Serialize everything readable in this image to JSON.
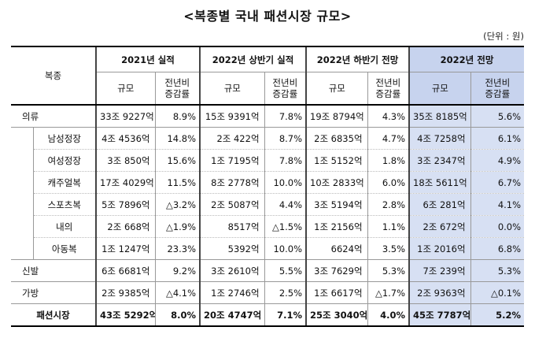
{
  "title": "<복종별 국내 패션시장 규모>",
  "unit": "(단위 : 원)",
  "table": {
    "corner": "복종",
    "groups": [
      "2021년 실적",
      "2022년 상반기 실적",
      "2022년 하반기 전망",
      "2022년 전망"
    ],
    "sub_size": "규모",
    "sub_rate": "전년비 증감률",
    "rows": [
      {
        "name": "의류",
        "v": [
          "33조 9227억",
          "8.9%",
          "15조 9391억",
          "7.8%",
          "19조 8794억",
          "4.3%",
          "35조 8185억",
          "5.6%"
        ]
      },
      {
        "name": "남성정장",
        "v": [
          "4조 4536억",
          "14.8%",
          "2조 422억",
          "8.7%",
          "2조 6835억",
          "4.7%",
          "4조 7258억",
          "6.1%"
        ]
      },
      {
        "name": "여성정장",
        "v": [
          "3조 850억",
          "15.6%",
          "1조 7195억",
          "7.8%",
          "1조 5152억",
          "1.8%",
          "3조 2347억",
          "4.9%"
        ]
      },
      {
        "name": "캐주얼복",
        "v": [
          "17조 4029억",
          "11.5%",
          "8조 2778억",
          "10.0%",
          "10조 2833억",
          "6.0%",
          "18조 5611억",
          "6.7%"
        ]
      },
      {
        "name": "스포츠복",
        "v": [
          "5조 7896억",
          "△3.2%",
          "2조 5087억",
          "4.4%",
          "3조 5194억",
          "2.8%",
          "6조 281억",
          "4.1%"
        ]
      },
      {
        "name": "내의",
        "v": [
          "2조 668억",
          "△1.9%",
          "8517억",
          "△1.5%",
          "1조 2156억",
          "1.1%",
          "2조 672억",
          "0.0%"
        ]
      },
      {
        "name": "아동복",
        "v": [
          "1조 1247억",
          "23.3%",
          "5392억",
          "10.0%",
          "6624억",
          "3.5%",
          "1조 2016억",
          "6.8%"
        ]
      },
      {
        "name": "신발",
        "v": [
          "6조 6681억",
          "9.2%",
          "3조 2610억",
          "5.5%",
          "3조 7629억",
          "5.3%",
          "7조 239억",
          "5.3%"
        ]
      },
      {
        "name": "가방",
        "v": [
          "2조 9385억",
          "△4.1%",
          "1조 2746억",
          "2.5%",
          "1조 6617억",
          "△1.7%",
          "2조 9363억",
          "△0.1%"
        ]
      },
      {
        "name": "패션시장",
        "v": [
          "43조 5292억",
          "8.0%",
          "20조 4747억",
          "7.1%",
          "25조 3040억",
          "4.0%",
          "45조 7787억",
          "5.2%"
        ]
      }
    ]
  },
  "colors": {
    "highlight": "#d7e0f3",
    "highlight_header": "#c7d3ee"
  }
}
